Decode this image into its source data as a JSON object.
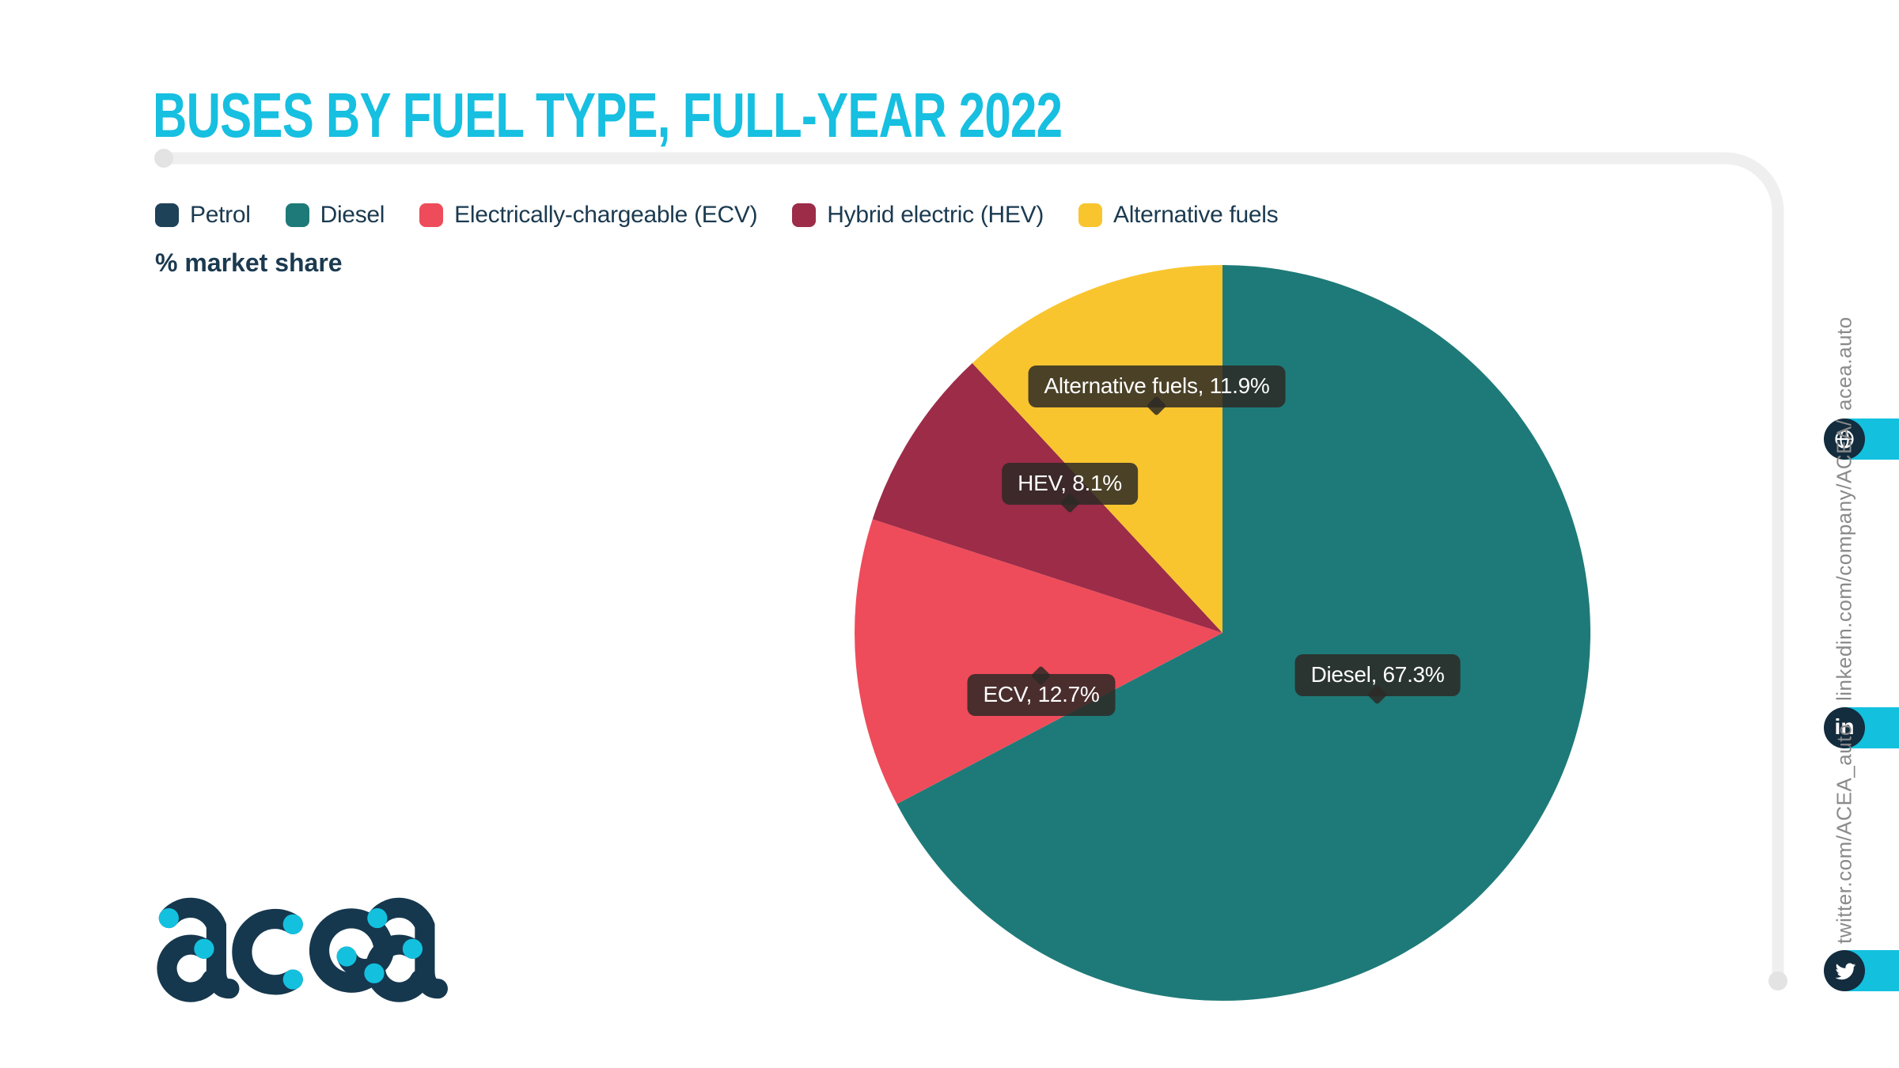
{
  "title": "BUSES BY FUEL TYPE, FULL-YEAR 2022",
  "subtitle": "% market share",
  "legend": [
    {
      "label": "Petrol",
      "color": "#1E4258"
    },
    {
      "label": "Diesel",
      "color": "#1E7A78"
    },
    {
      "label": "Electrically-chargeable (ECV)",
      "color": "#EE4C5A"
    },
    {
      "label": "Hybrid electric (HEV)",
      "color": "#9C2C48"
    },
    {
      "label": "Alternative fuels",
      "color": "#F9C52F"
    }
  ],
  "chart_data": {
    "type": "pie",
    "title": "BUSES BY FUEL TYPE, FULL-YEAR 2022",
    "unit": "% market share",
    "start_angle_deg": 0,
    "direction": "clockwise",
    "legend_position": "top-left",
    "series": [
      {
        "name": "Petrol",
        "value": 0.0,
        "color": "#1E4258"
      },
      {
        "name": "Diesel",
        "value": 67.3,
        "color": "#1E7A78"
      },
      {
        "name": "ECV",
        "value": 12.7,
        "color": "#EE4C5A"
      },
      {
        "name": "HEV",
        "value": 8.1,
        "color": "#9C2C48"
      },
      {
        "name": "Alternative fuels",
        "value": 11.9,
        "color": "#F9C52F"
      }
    ],
    "callouts": [
      {
        "text": "Alternative fuels, 11.9%"
      },
      {
        "text": "HEV, 8.1%"
      },
      {
        "text": "ECV, 12.7%"
      },
      {
        "text": "Diesel, 67.3%"
      }
    ]
  },
  "logo": {
    "text": "acea"
  },
  "social": [
    {
      "label": "acea.auto",
      "icon": "globe-icon"
    },
    {
      "label": "linkedin.com/company/ACEA/",
      "icon": "linkedin-icon",
      "icon_text": "in"
    },
    {
      "label": "twitter.com/ACEA_auto",
      "icon": "twitter-icon"
    }
  ],
  "colors": {
    "title": "#17BFE0",
    "accent_cyan": "#13C1DF",
    "navy": "#1B3A50",
    "frame_gray": "#EFEFEF",
    "frame_cap_gray": "#E3E3E3",
    "tooltip_bg": "rgba(45,41,38,0.85)",
    "vertical_text_gray": "#8A8A8A"
  }
}
